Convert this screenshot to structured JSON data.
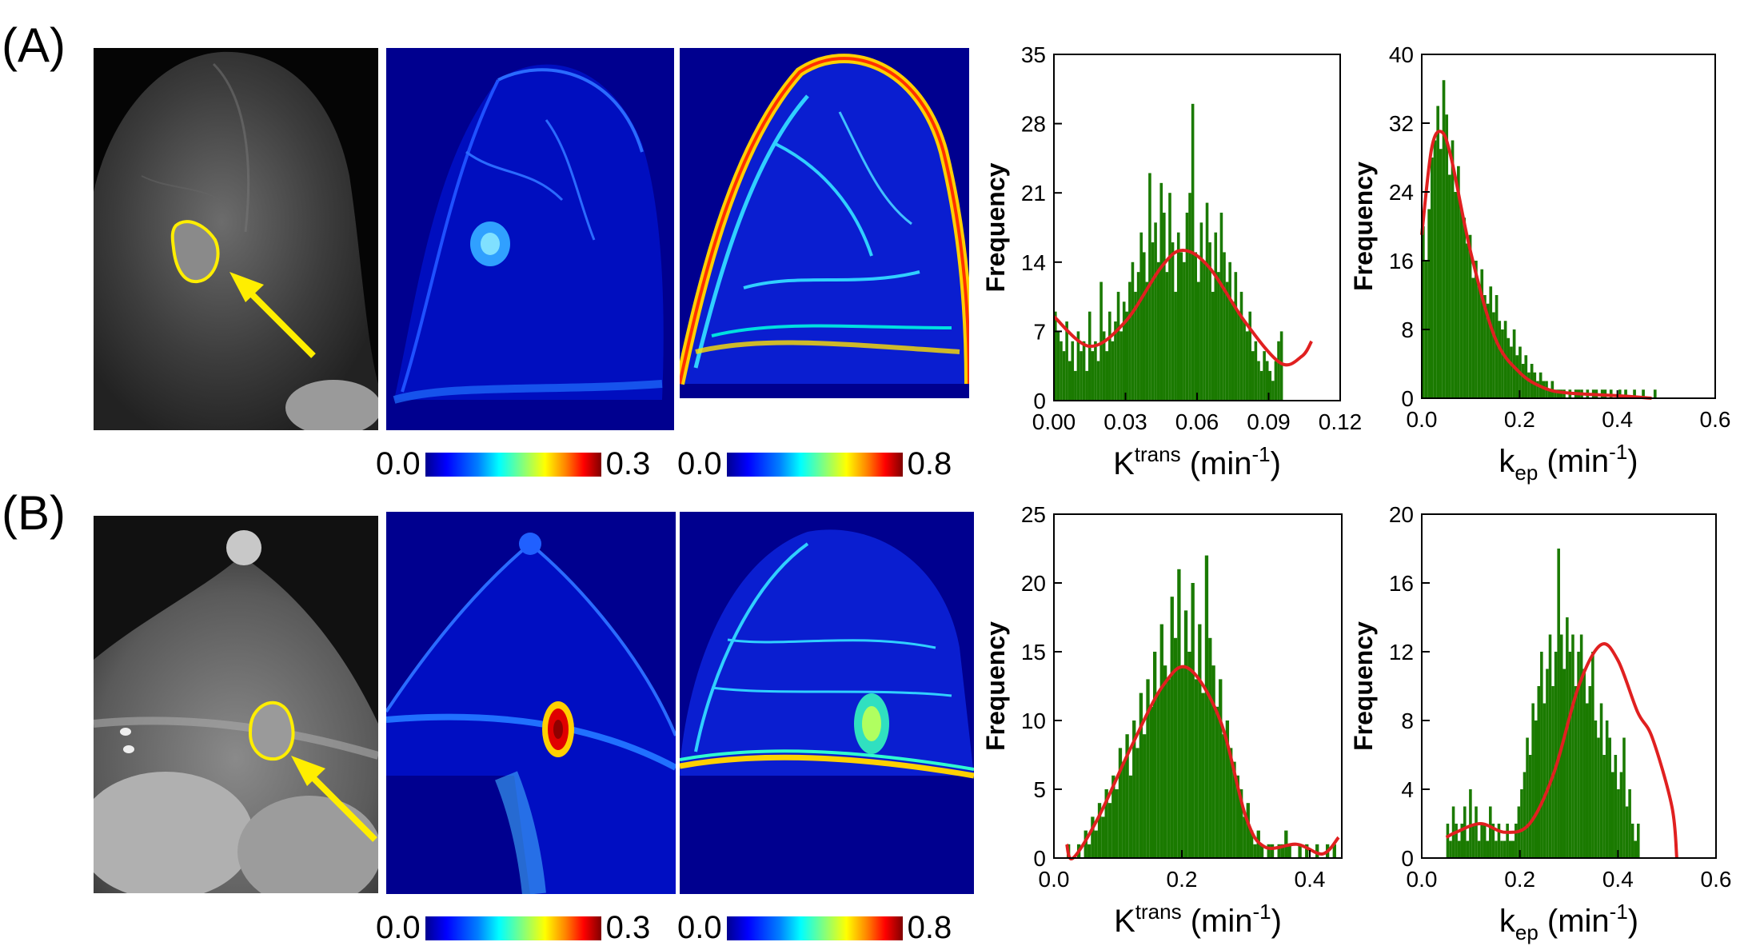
{
  "panels": [
    {
      "label": "(A)",
      "colorbar_ktrans": {
        "min": "0.0",
        "max": "0.3"
      },
      "colorbar_kep": {
        "min": "0.0",
        "max": "0.8"
      }
    },
    {
      "label": "(B)",
      "colorbar_ktrans": {
        "min": "0.0",
        "max": "0.3"
      },
      "colorbar_kep": {
        "min": "0.0",
        "max": "0.8"
      }
    }
  ],
  "colors": {
    "bars": "#1a7a00",
    "fit": "#e02020",
    "roi": "#ffee00",
    "map_bg": "#00008f"
  },
  "chart_data": [
    {
      "id": "A-ktrans",
      "type": "bar",
      "xlabel_main": "K",
      "xlabel_sup": "trans",
      "xlabel_unit": "(min",
      "xlabel_unit_sup": "-1",
      "xlabel_close": ")",
      "ylabel": "Frequency",
      "xlim": [
        0,
        0.12
      ],
      "ylim": [
        0,
        35
      ],
      "xticks": [
        "0.00",
        "0.03",
        "0.06",
        "0.09",
        "0.12"
      ],
      "xtick_values": [
        0,
        0.03,
        0.06,
        0.09,
        0.12
      ],
      "yticks": [
        "0",
        "7",
        "14",
        "21",
        "28",
        "35"
      ],
      "ytick_values": [
        0,
        7,
        14,
        21,
        28,
        35
      ],
      "bin_start": 0.0,
      "bin_width": 0.0012,
      "values": [
        9,
        7,
        6,
        5,
        8,
        4,
        6,
        3,
        7,
        5,
        6,
        3,
        9,
        5,
        6,
        4,
        12,
        7,
        5,
        9,
        6,
        8,
        11,
        7,
        10,
        9,
        12,
        14,
        11,
        13,
        17,
        15,
        12,
        23,
        16,
        18,
        14,
        22,
        19,
        13,
        21,
        16,
        11,
        17,
        15,
        14,
        19,
        21,
        30,
        15,
        12,
        18,
        14,
        20,
        16,
        11,
        17,
        13,
        19,
        15,
        12,
        14,
        10,
        13,
        9,
        11,
        8,
        7,
        9,
        5,
        6,
        4,
        3,
        5,
        4,
        3,
        2,
        4,
        6,
        7
      ],
      "fit_x": [
        0,
        0.015,
        0.03,
        0.045,
        0.054,
        0.065,
        0.08,
        0.095,
        0.104,
        0.108
      ],
      "fit_y": [
        8.5,
        5.5,
        8,
        13.5,
        15.2,
        13.5,
        8,
        3.8,
        4.5,
        6
      ]
    },
    {
      "id": "A-kep",
      "type": "bar",
      "xlabel_main": "k",
      "xlabel_sub": "ep",
      "xlabel_unit": "(min",
      "xlabel_unit_sup": "-1",
      "xlabel_close": ")",
      "ylabel": "Frequency",
      "xlim": [
        0,
        0.6
      ],
      "ylim": [
        0,
        40
      ],
      "xticks": [
        "0.0",
        "0.2",
        "0.4",
        "0.6"
      ],
      "xtick_values": [
        0,
        0.2,
        0.4,
        0.6
      ],
      "yticks": [
        "0",
        "8",
        "16",
        "24",
        "32",
        "40"
      ],
      "ytick_values": [
        0,
        8,
        16,
        24,
        32,
        40
      ],
      "bin_start": 0.0,
      "bin_width": 0.006,
      "values": [
        20,
        16,
        22,
        28,
        30,
        34,
        29,
        37,
        33,
        26,
        30,
        24,
        27,
        22,
        21,
        18,
        19,
        14,
        16,
        13,
        15,
        12,
        11,
        13,
        10,
        12,
        9,
        8,
        9,
        7,
        6,
        8,
        5,
        6,
        4,
        5,
        3,
        4,
        3,
        2,
        3,
        2,
        2,
        1,
        2,
        1,
        1,
        1,
        1,
        0,
        1,
        0,
        1,
        1,
        1,
        0,
        1,
        0,
        1,
        1,
        0,
        1,
        1,
        0,
        1,
        0,
        0,
        1,
        0,
        1,
        0,
        0,
        1,
        0,
        0,
        1,
        0,
        0,
        0,
        1
      ],
      "fit_x": [
        0,
        0.02,
        0.04,
        0.06,
        0.1,
        0.15,
        0.2,
        0.25,
        0.3,
        0.4,
        0.47
      ],
      "fit_y": [
        19,
        29,
        31,
        28,
        17,
        7,
        3,
        1.2,
        0.6,
        0.3,
        0
      ],
      "fit_end": 0.47
    },
    {
      "id": "B-ktrans",
      "type": "bar",
      "xlabel_main": "K",
      "xlabel_sup": "trans",
      "xlabel_unit": "(min",
      "xlabel_unit_sup": "-1",
      "xlabel_close": ")",
      "ylabel": "Frequency",
      "xlim": [
        0,
        0.45
      ],
      "ylim": [
        0,
        25
      ],
      "xticks": [
        "0.0",
        "0.2",
        "0.4"
      ],
      "xtick_values": [
        0,
        0.2,
        0.4
      ],
      "yticks": [
        "0",
        "5",
        "10",
        "15",
        "20",
        "25"
      ],
      "ytick_values": [
        0,
        5,
        10,
        15,
        20,
        25
      ],
      "bin_start": 0.02,
      "bin_width": 0.0054,
      "values": [
        1,
        0,
        0,
        1,
        0,
        2,
        1,
        3,
        2,
        4,
        3,
        5,
        4,
        6,
        5,
        8,
        7,
        9,
        6,
        10,
        8,
        12,
        9,
        13,
        11,
        15,
        12,
        17,
        14,
        13,
        19,
        16,
        21,
        14,
        18,
        15,
        20,
        13,
        17,
        12,
        22,
        16,
        14,
        11,
        13,
        9,
        10,
        8,
        7,
        6,
        5,
        3,
        4,
        2,
        1,
        2,
        1,
        0,
        1,
        1,
        0,
        1,
        1,
        2,
        1,
        0,
        0,
        1,
        0,
        1,
        0,
        0,
        1,
        0,
        0,
        1,
        0,
        1
      ],
      "fit_x": [
        0.02,
        0.03,
        0.07,
        0.12,
        0.17,
        0.21,
        0.26,
        0.3,
        0.33,
        0.38,
        0.42,
        0.445
      ],
      "fit_y": [
        1,
        0,
        3,
        8,
        12.5,
        13.8,
        10,
        3,
        0.8,
        1,
        0.3,
        1.5
      ]
    },
    {
      "id": "B-kep",
      "type": "bar",
      "xlabel_main": "k",
      "xlabel_sub": "ep",
      "xlabel_unit": "(min",
      "xlabel_unit_sup": "-1",
      "xlabel_close": ")",
      "ylabel": "Frequency",
      "xlim": [
        0,
        0.6
      ],
      "ylim": [
        0,
        20
      ],
      "xticks": [
        "0.0",
        "0.2",
        "0.4",
        "0.6"
      ],
      "xtick_values": [
        0,
        0.2,
        0.4,
        0.6
      ],
      "yticks": [
        "0",
        "4",
        "8",
        "12",
        "16",
        "20"
      ],
      "ytick_values": [
        0,
        4,
        8,
        12,
        16,
        20
      ],
      "bin_start": 0.05,
      "bin_width": 0.0058,
      "values": [
        2,
        1,
        3,
        2,
        1,
        2,
        3,
        1,
        4,
        2,
        3,
        1,
        2,
        2,
        1,
        3,
        2,
        1,
        2,
        1,
        1,
        2,
        1,
        1,
        2,
        3,
        4,
        5,
        7,
        6,
        9,
        8,
        10,
        12,
        9,
        11,
        13,
        10,
        12,
        18,
        13,
        11,
        14,
        12,
        13,
        10,
        12,
        13,
        11,
        9,
        10,
        12,
        8,
        7,
        9,
        6,
        8,
        7,
        5,
        6,
        4,
        5,
        7,
        3,
        4,
        2,
        1,
        2
      ],
      "fit_x": [
        0.05,
        0.07,
        0.12,
        0.17,
        0.22,
        0.27,
        0.32,
        0.365,
        0.4,
        0.44,
        0.47,
        0.51,
        0.52
      ],
      "fit_y": [
        1.2,
        1.5,
        2,
        1.5,
        2,
        5,
        10,
        12.4,
        11.5,
        8.5,
        7,
        3,
        0
      ]
    }
  ]
}
